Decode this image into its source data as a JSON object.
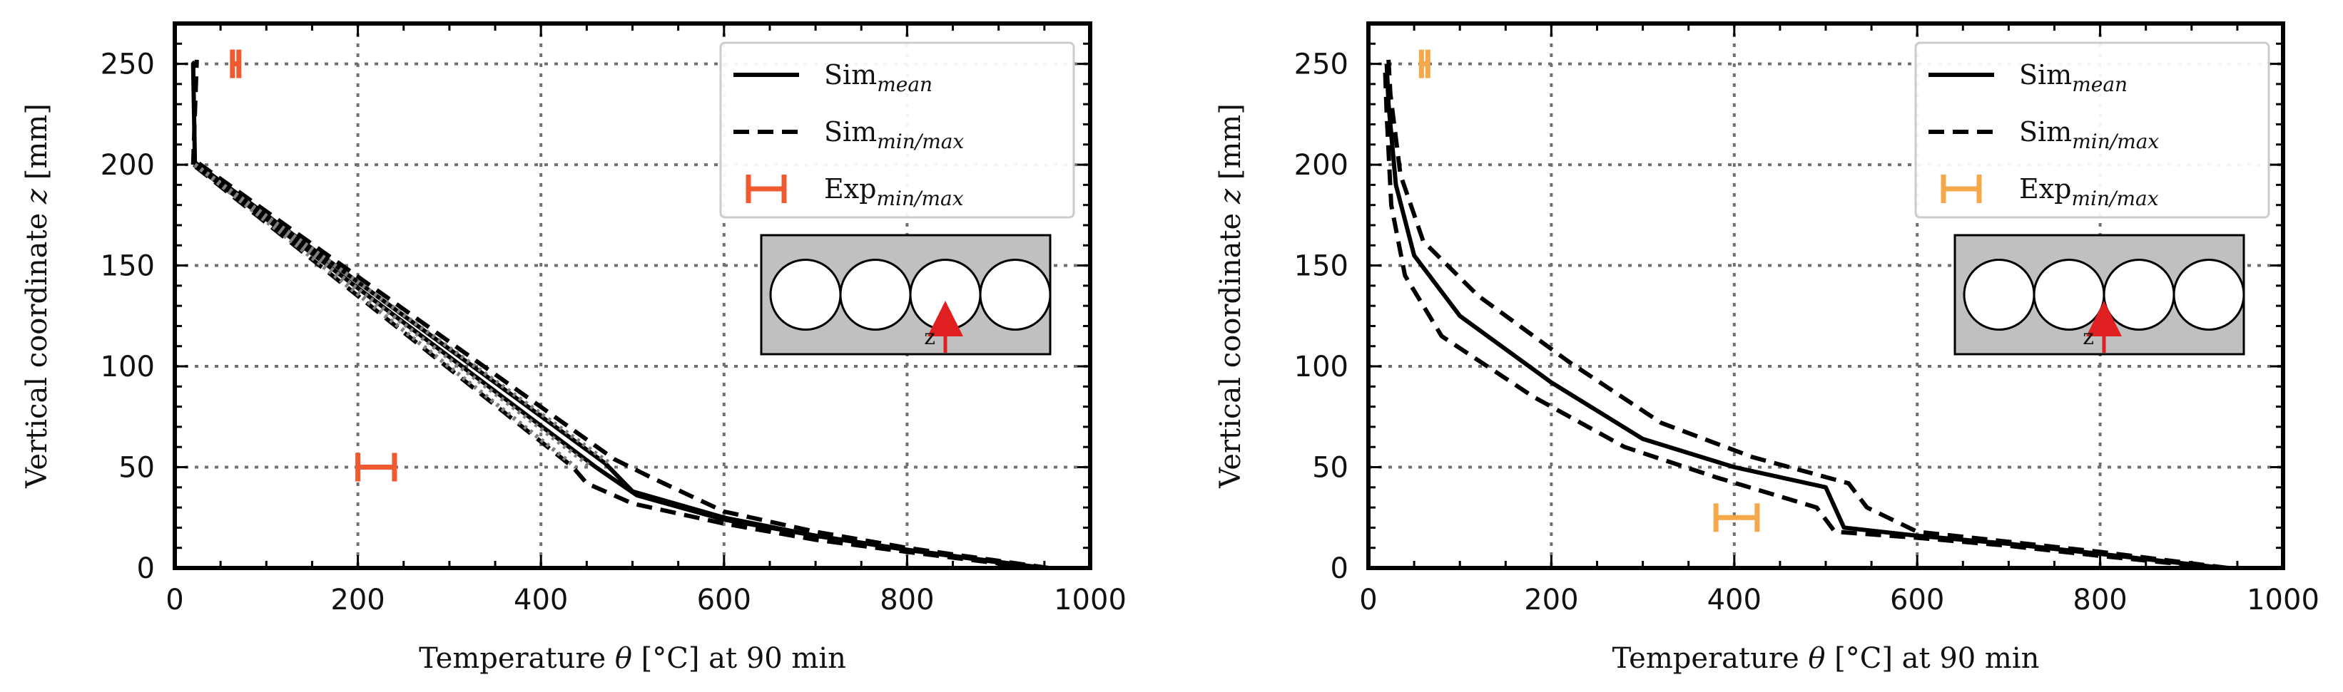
{
  "colors": {
    "sim": "#000000",
    "rising_left": "#808080",
    "exp_left": "#f05a30",
    "exp_right": "#f5a84a",
    "grid": "#707070",
    "inset_fill": "#c0c0c0",
    "inset_arrow": "#e02020"
  },
  "chart_data": [
    {
      "type": "line",
      "panel": "left",
      "xlabel_parts": [
        "Temperature ",
        "θ",
        " [°C] at 90 min"
      ],
      "ylabel_parts": [
        "Vertical coordinate ",
        "z",
        " [mm]"
      ],
      "xlim": [
        0,
        1000
      ],
      "ylim": [
        0,
        270
      ],
      "xticks": [
        0,
        200,
        400,
        600,
        800,
        1000
      ],
      "yticks": [
        0,
        50,
        100,
        150,
        200,
        250
      ],
      "xtick_labels": [
        "0",
        "200",
        "400",
        "600",
        "800",
        "1000"
      ],
      "ytick_labels": [
        "0",
        "50",
        "100",
        "150",
        "200",
        "250"
      ],
      "grid": true,
      "legend": {
        "location": "top-right",
        "entries": [
          {
            "base": "Sim",
            "sub": "mean",
            "style": "solid"
          },
          {
            "base": "Sim",
            "sub": "min/max",
            "style": "dashed"
          },
          {
            "base": "Exp",
            "sub": "min/max",
            "style": "errorbar"
          }
        ]
      },
      "inset": {
        "label": "z",
        "arrow_position": "center of third circle"
      },
      "series": [
        {
          "name": "Sim_mean",
          "style": "solid",
          "x": [
            950,
            800,
            700,
            600,
            500,
            470,
            22,
            20,
            22
          ],
          "z": [
            0,
            9,
            16,
            25,
            38,
            52,
            201,
            250,
            251
          ]
        },
        {
          "name": "Sim_min",
          "style": "dashed",
          "x": [
            940,
            800,
            700,
            600,
            500,
            450,
            435,
            20
          ],
          "z": [
            0,
            8,
            14,
            22,
            32,
            42,
            50,
            200
          ]
        },
        {
          "name": "Sim_max",
          "style": "dashed",
          "x": [
            955,
            800,
            700,
            600,
            520,
            480,
            22
          ],
          "z": [
            0,
            10,
            18,
            28,
            45,
            54,
            202
          ]
        },
        {
          "name": "Sim_mid",
          "style": "solid",
          "x": [
            945,
            800,
            700,
            600,
            505,
            460,
            21
          ],
          "z": [
            0,
            9,
            16,
            24,
            36,
            50,
            200
          ]
        },
        {
          "name": "Sim_min_upper",
          "style": "dashed",
          "x": [
            20,
            24
          ],
          "z": [
            200,
            252
          ]
        }
      ],
      "experiments": [
        {
          "name": "Exp_min_max",
          "xmin": 200,
          "xmax": 240,
          "z": 50
        },
        {
          "name": "Exp_min_max_top",
          "xmin": 63,
          "xmax": 70,
          "z": 250
        }
      ]
    },
    {
      "type": "line",
      "panel": "right",
      "xlabel_parts": [
        "Temperature ",
        "θ",
        " [°C] at 90 min"
      ],
      "ylabel_parts": [
        "Vertical coordinate ",
        "z",
        " [mm]"
      ],
      "xlim": [
        0,
        1000
      ],
      "ylim": [
        0,
        270
      ],
      "xticks": [
        0,
        200,
        400,
        600,
        800,
        1000
      ],
      "yticks": [
        0,
        50,
        100,
        150,
        200,
        250
      ],
      "xtick_labels": [
        "0",
        "200",
        "400",
        "600",
        "800",
        "1000"
      ],
      "ytick_labels": [
        "0",
        "50",
        "100",
        "150",
        "200",
        "250"
      ],
      "grid": true,
      "legend": {
        "location": "top-right",
        "entries": [
          {
            "base": "Sim",
            "sub": "mean",
            "style": "solid"
          },
          {
            "base": "Sim",
            "sub": "min/max",
            "style": "dashed"
          },
          {
            "base": "Exp",
            "sub": "min/max",
            "style": "errorbar"
          }
        ]
      },
      "inset": {
        "label": "z",
        "arrow_position": "between second and third circle"
      },
      "series": [
        {
          "name": "Sim_mean",
          "style": "solid",
          "x": [
            935,
            800,
            700,
            600,
            520,
            500,
            400,
            300,
            200,
            100,
            50,
            30,
            22,
            20
          ],
          "z": [
            0,
            7,
            12,
            16,
            20,
            40,
            50,
            64,
            92,
            125,
            155,
            190,
            230,
            250
          ]
        },
        {
          "name": "Sim_min",
          "style": "dashed",
          "x": [
            930,
            800,
            700,
            600,
            510,
            490,
            380,
            280,
            180,
            80,
            40,
            25,
            20,
            18
          ],
          "z": [
            0,
            6,
            11,
            15,
            18,
            30,
            45,
            60,
            85,
            115,
            145,
            180,
            225,
            250
          ]
        },
        {
          "name": "Sim_max",
          "style": "dashed",
          "x": [
            940,
            800,
            700,
            600,
            545,
            525,
            420,
            320,
            220,
            120,
            60,
            35,
            24,
            22
          ],
          "z": [
            0,
            8,
            13,
            18,
            30,
            42,
            55,
            72,
            102,
            135,
            162,
            195,
            235,
            252
          ]
        }
      ],
      "experiments": [
        {
          "name": "Exp_min_max",
          "xmin": 380,
          "xmax": 425,
          "z": 25
        },
        {
          "name": "Exp_min_max_top",
          "xmin": 58,
          "xmax": 65,
          "z": 250
        }
      ]
    }
  ]
}
